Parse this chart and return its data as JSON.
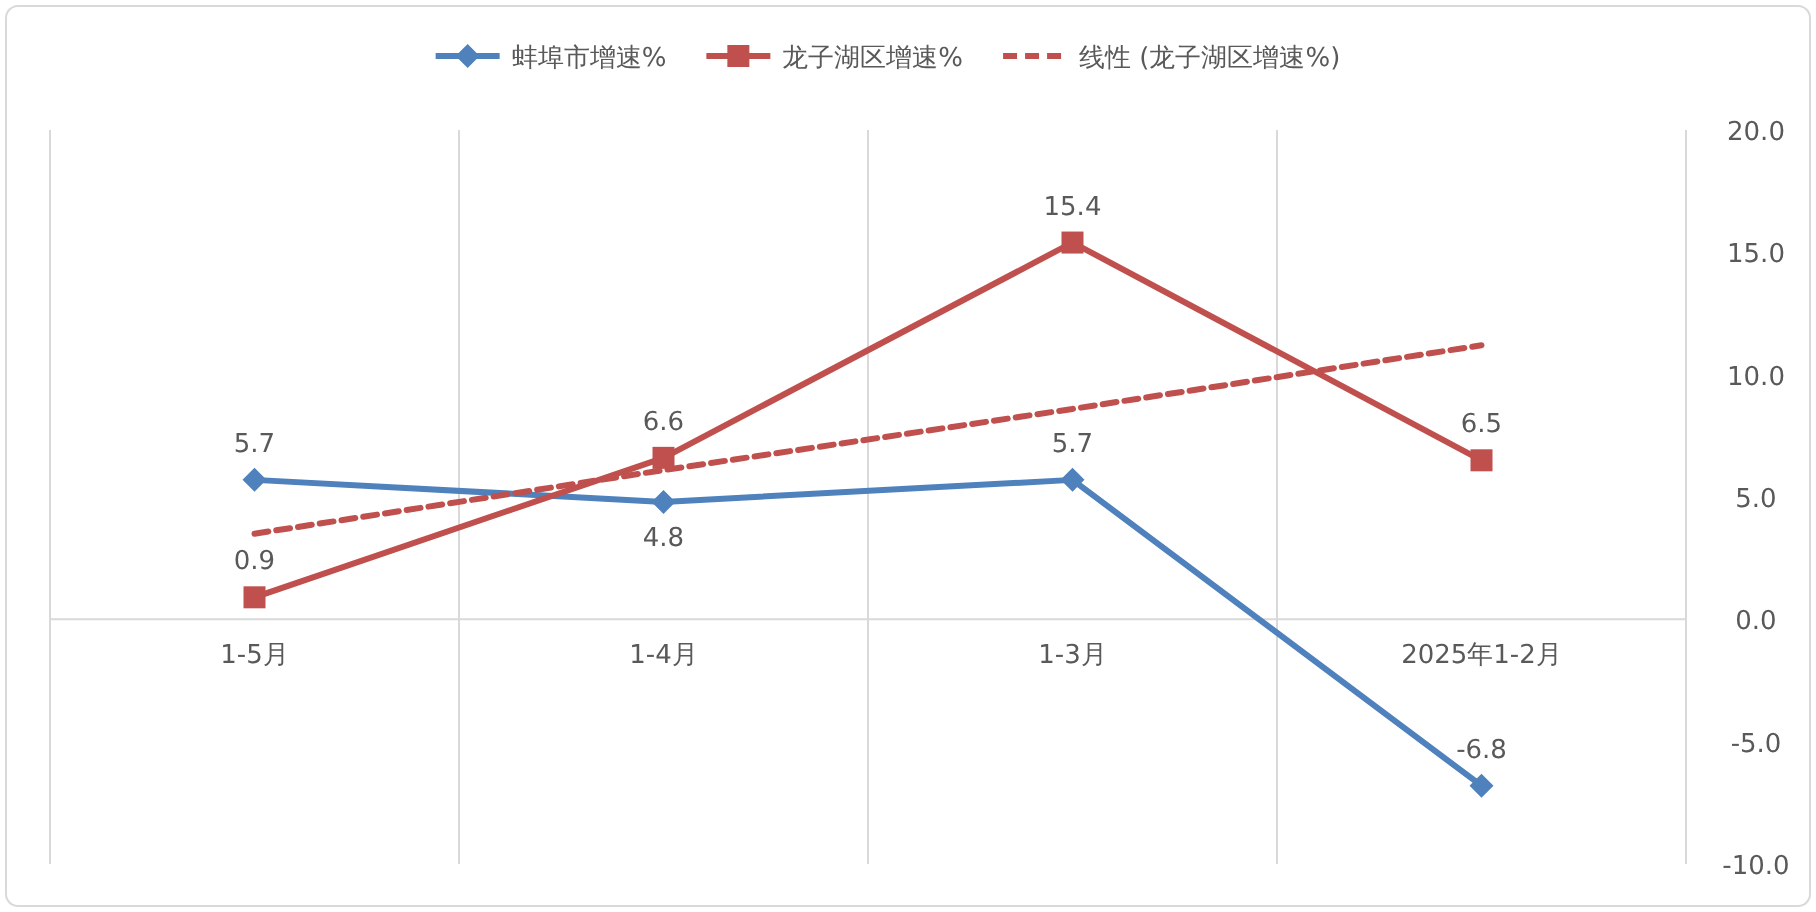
{
  "chart_data": {
    "type": "line",
    "categories": [
      "1-5月",
      "1-4月",
      "1-3月",
      "2025年1-2月"
    ],
    "series": [
      {
        "name": "蚌埠市增速%",
        "color": "#4f81bd",
        "marker": "diamond",
        "line_style": "solid",
        "values": [
          5.7,
          4.8,
          5.7,
          -6.8
        ],
        "value_labels": [
          "5.7",
          "4.8",
          "5.7",
          "-6.8"
        ]
      },
      {
        "name": "龙子湖区增速%",
        "color": "#c0504d",
        "marker": "square",
        "line_style": "solid",
        "values": [
          0.9,
          6.6,
          15.4,
          6.5
        ],
        "value_labels": [
          "0.9",
          "6.6",
          "15.4",
          "6.5"
        ]
      },
      {
        "name": "线性 (龙子湖区增速%)",
        "color": "#c0504d",
        "marker": "none",
        "line_style": "dashed",
        "values": [
          3.5,
          6.1,
          8.6,
          11.2
        ]
      }
    ],
    "ylim": [
      -10,
      20
    ],
    "yticks": [
      {
        "value": -10,
        "label": "-10.0"
      },
      {
        "value": -5,
        "label": "-5.0"
      },
      {
        "value": 0,
        "label": "0.0"
      },
      {
        "value": 5,
        "label": "5.0"
      },
      {
        "value": 10,
        "label": "10.0"
      },
      {
        "value": 15,
        "label": "15.0"
      },
      {
        "value": 20,
        "label": "20.0"
      }
    ],
    "grid": "x",
    "legend": "top"
  }
}
